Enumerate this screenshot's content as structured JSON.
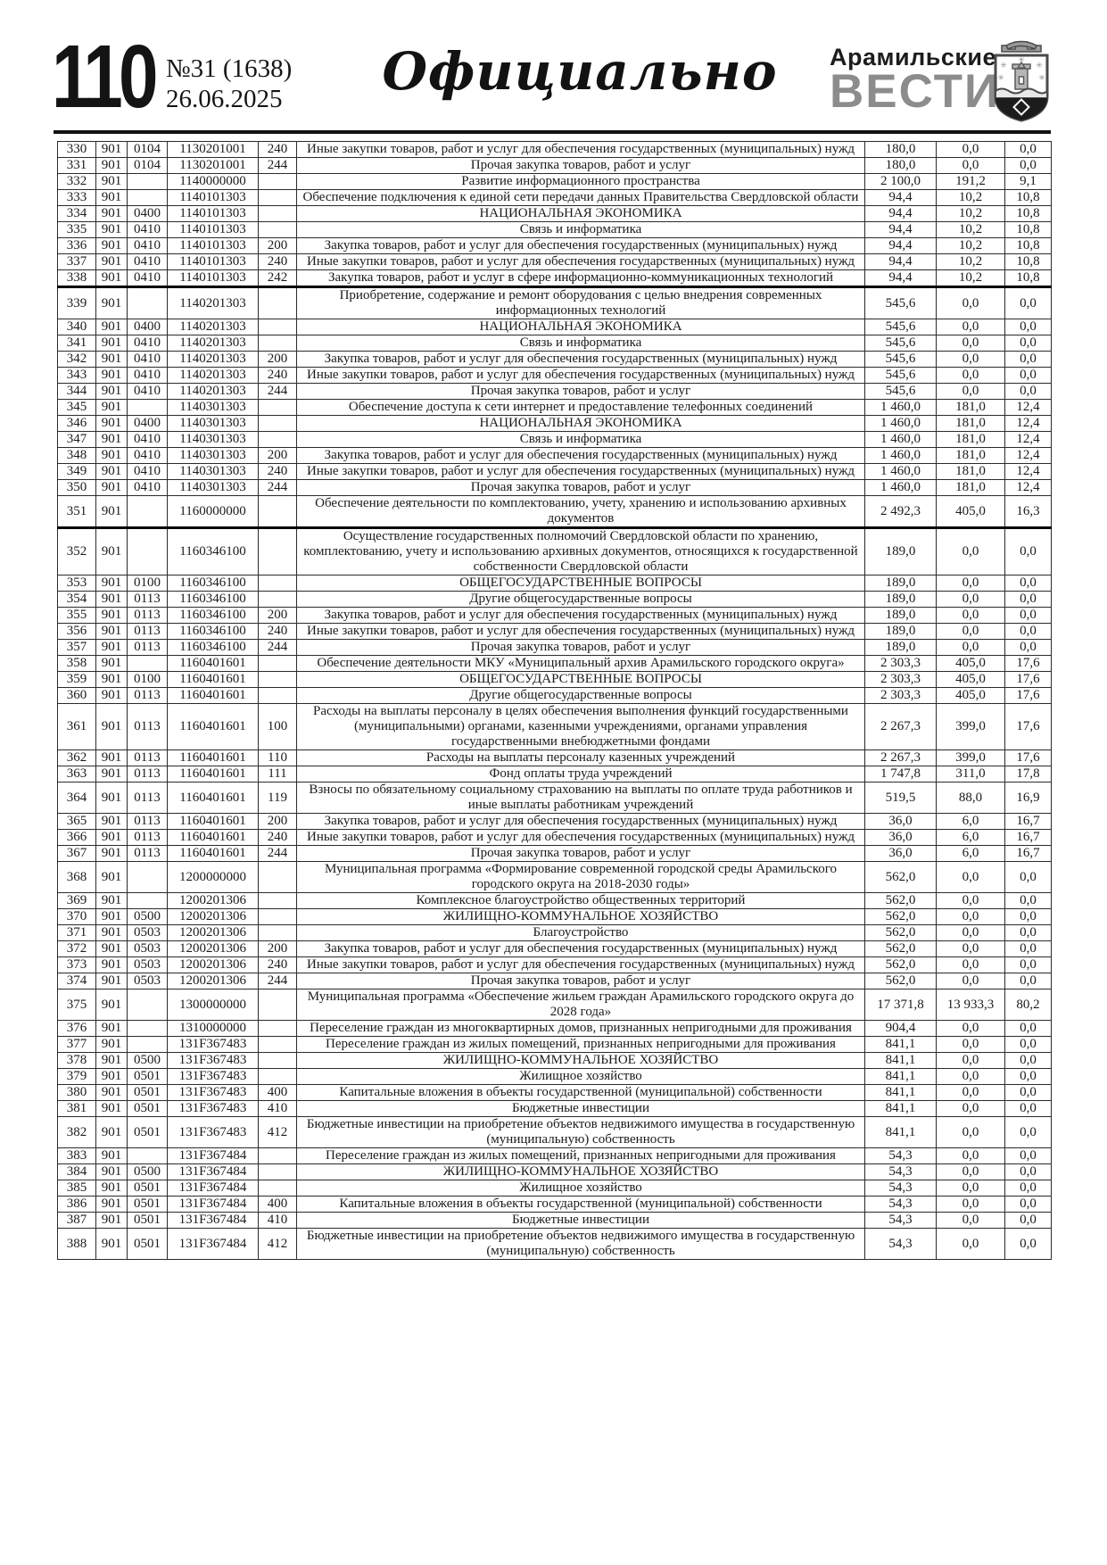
{
  "colors": {
    "masthead_gray": "#8c8c8c",
    "text": "#1b1b1b",
    "rule": "#111111"
  },
  "header": {
    "page_number": "110",
    "issue_number": "№31 (1638)",
    "issue_date": "26.06.2025",
    "section_title": "Официально",
    "masthead_line1": "Арамильские",
    "masthead_line2": "ВЕСТИ",
    "crest_icon": "aramil-coat-of-arms-icon"
  },
  "table": {
    "column_names": [
      "row-number",
      "grbs-code",
      "section-code",
      "target-article-code",
      "expense-type-code",
      "expense-name",
      "approved-amount",
      "executed-amount",
      "execution-percent"
    ],
    "thick_top_rows": [
      "339",
      "352"
    ],
    "rows": [
      [
        "330",
        "901",
        "0104",
        "1130201001",
        "240",
        "Иные закупки товаров, работ и услуг для обеспечения государственных (муниципальных) нужд",
        "180,0",
        "0,0",
        "0,0"
      ],
      [
        "331",
        "901",
        "0104",
        "1130201001",
        "244",
        "Прочая закупка товаров, работ и услуг",
        "180,0",
        "0,0",
        "0,0"
      ],
      [
        "332",
        "901",
        "",
        "1140000000",
        "",
        "Развитие информационного пространства",
        "2 100,0",
        "191,2",
        "9,1"
      ],
      [
        "333",
        "901",
        "",
        "1140101303",
        "",
        "Обеспечение подключения к единой сети передачи данных Правительства Свердловской области",
        "94,4",
        "10,2",
        "10,8"
      ],
      [
        "334",
        "901",
        "0400",
        "1140101303",
        "",
        "НАЦИОНАЛЬНАЯ ЭКОНОМИКА",
        "94,4",
        "10,2",
        "10,8"
      ],
      [
        "335",
        "901",
        "0410",
        "1140101303",
        "",
        "Связь и информатика",
        "94,4",
        "10,2",
        "10,8"
      ],
      [
        "336",
        "901",
        "0410",
        "1140101303",
        "200",
        "Закупка товаров, работ и услуг для обеспечения государственных (муниципальных) нужд",
        "94,4",
        "10,2",
        "10,8"
      ],
      [
        "337",
        "901",
        "0410",
        "1140101303",
        "240",
        "Иные закупки товаров, работ и услуг для обеспечения государственных (муниципальных) нужд",
        "94,4",
        "10,2",
        "10,8"
      ],
      [
        "338",
        "901",
        "0410",
        "1140101303",
        "242",
        "Закупка товаров, работ и услуг в сфере информационно-коммуникационных технологий",
        "94,4",
        "10,2",
        "10,8"
      ],
      [
        "339",
        "901",
        "",
        "1140201303",
        "",
        "Приобретение, содержание и ремонт оборудования с целью внедрения современных информационных технологий",
        "545,6",
        "0,0",
        "0,0"
      ],
      [
        "340",
        "901",
        "0400",
        "1140201303",
        "",
        "НАЦИОНАЛЬНАЯ ЭКОНОМИКА",
        "545,6",
        "0,0",
        "0,0"
      ],
      [
        "341",
        "901",
        "0410",
        "1140201303",
        "",
        "Связь и информатика",
        "545,6",
        "0,0",
        "0,0"
      ],
      [
        "342",
        "901",
        "0410",
        "1140201303",
        "200",
        "Закупка товаров, работ и услуг для обеспечения государственных (муниципальных) нужд",
        "545,6",
        "0,0",
        "0,0"
      ],
      [
        "343",
        "901",
        "0410",
        "1140201303",
        "240",
        "Иные закупки товаров, работ и услуг для обеспечения государственных (муниципальных) нужд",
        "545,6",
        "0,0",
        "0,0"
      ],
      [
        "344",
        "901",
        "0410",
        "1140201303",
        "244",
        "Прочая закупка товаров, работ и услуг",
        "545,6",
        "0,0",
        "0,0"
      ],
      [
        "345",
        "901",
        "",
        "1140301303",
        "",
        "Обеспечение доступа к сети интернет и предоставление телефонных соединений",
        "1 460,0",
        "181,0",
        "12,4"
      ],
      [
        "346",
        "901",
        "0400",
        "1140301303",
        "",
        "НАЦИОНАЛЬНАЯ ЭКОНОМИКА",
        "1 460,0",
        "181,0",
        "12,4"
      ],
      [
        "347",
        "901",
        "0410",
        "1140301303",
        "",
        "Связь и информатика",
        "1 460,0",
        "181,0",
        "12,4"
      ],
      [
        "348",
        "901",
        "0410",
        "1140301303",
        "200",
        "Закупка товаров, работ и услуг для обеспечения государственных (муниципальных) нужд",
        "1 460,0",
        "181,0",
        "12,4"
      ],
      [
        "349",
        "901",
        "0410",
        "1140301303",
        "240",
        "Иные закупки товаров, работ и услуг для обеспечения государственных (муниципальных) нужд",
        "1 460,0",
        "181,0",
        "12,4"
      ],
      [
        "350",
        "901",
        "0410",
        "1140301303",
        "244",
        "Прочая закупка товаров, работ и услуг",
        "1 460,0",
        "181,0",
        "12,4"
      ],
      [
        "351",
        "901",
        "",
        "1160000000",
        "",
        "Обеспечение деятельности по комплектованию, учету, хранению и использованию архивных документов",
        "2 492,3",
        "405,0",
        "16,3"
      ],
      [
        "352",
        "901",
        "",
        "1160346100",
        "",
        "Осуществление государственных полномочий Свердловской области по хранению, комплектованию, учету и использованию архивных документов, относящихся к государственной собственности Свердловской области",
        "189,0",
        "0,0",
        "0,0"
      ],
      [
        "353",
        "901",
        "0100",
        "1160346100",
        "",
        "ОБЩЕГОСУДАРСТВЕННЫЕ ВОПРОСЫ",
        "189,0",
        "0,0",
        "0,0"
      ],
      [
        "354",
        "901",
        "0113",
        "1160346100",
        "",
        "Другие общегосударственные вопросы",
        "189,0",
        "0,0",
        "0,0"
      ],
      [
        "355",
        "901",
        "0113",
        "1160346100",
        "200",
        "Закупка товаров, работ и услуг для обеспечения государственных (муниципальных) нужд",
        "189,0",
        "0,0",
        "0,0"
      ],
      [
        "356",
        "901",
        "0113",
        "1160346100",
        "240",
        "Иные закупки товаров, работ и услуг для обеспечения государственных (муниципальных) нужд",
        "189,0",
        "0,0",
        "0,0"
      ],
      [
        "357",
        "901",
        "0113",
        "1160346100",
        "244",
        "Прочая закупка товаров, работ и услуг",
        "189,0",
        "0,0",
        "0,0"
      ],
      [
        "358",
        "901",
        "",
        "1160401601",
        "",
        "Обеспечение деятельности МКУ «Муниципальный архив Арамильского городского округа»",
        "2 303,3",
        "405,0",
        "17,6"
      ],
      [
        "359",
        "901",
        "0100",
        "1160401601",
        "",
        "ОБЩЕГОСУДАРСТВЕННЫЕ ВОПРОСЫ",
        "2 303,3",
        "405,0",
        "17,6"
      ],
      [
        "360",
        "901",
        "0113",
        "1160401601",
        "",
        "Другие общегосударственные вопросы",
        "2 303,3",
        "405,0",
        "17,6"
      ],
      [
        "361",
        "901",
        "0113",
        "1160401601",
        "100",
        "Расходы на выплаты персоналу в целях обеспечения выполнения функций государственными (муниципальными) органами, казенными учреждениями, органами управления государственными внебюджетными фондами",
        "2 267,3",
        "399,0",
        "17,6"
      ],
      [
        "362",
        "901",
        "0113",
        "1160401601",
        "110",
        "Расходы на выплаты персоналу казенных учреждений",
        "2 267,3",
        "399,0",
        "17,6"
      ],
      [
        "363",
        "901",
        "0113",
        "1160401601",
        "111",
        "Фонд оплаты труда учреждений",
        "1 747,8",
        "311,0",
        "17,8"
      ],
      [
        "364",
        "901",
        "0113",
        "1160401601",
        "119",
        "Взносы по обязательному социальному страхованию на выплаты по оплате труда работников и иные выплаты работникам учреждений",
        "519,5",
        "88,0",
        "16,9"
      ],
      [
        "365",
        "901",
        "0113",
        "1160401601",
        "200",
        "Закупка товаров, работ и услуг для обеспечения государственных (муниципальных) нужд",
        "36,0",
        "6,0",
        "16,7"
      ],
      [
        "366",
        "901",
        "0113",
        "1160401601",
        "240",
        "Иные закупки товаров, работ и услуг для обеспечения государственных (муниципальных) нужд",
        "36,0",
        "6,0",
        "16,7"
      ],
      [
        "367",
        "901",
        "0113",
        "1160401601",
        "244",
        "Прочая закупка товаров, работ и услуг",
        "36,0",
        "6,0",
        "16,7"
      ],
      [
        "368",
        "901",
        "",
        "1200000000",
        "",
        "Муниципальная программа «Формирование современной городской среды Арамильского городского округа на 2018-2030 годы»",
        "562,0",
        "0,0",
        "0,0"
      ],
      [
        "369",
        "901",
        "",
        "1200201306",
        "",
        "Комплексное благоустройство общественных территорий",
        "562,0",
        "0,0",
        "0,0"
      ],
      [
        "370",
        "901",
        "0500",
        "1200201306",
        "",
        "ЖИЛИЩНО-КОММУНАЛЬНОЕ ХОЗЯЙСТВО",
        "562,0",
        "0,0",
        "0,0"
      ],
      [
        "371",
        "901",
        "0503",
        "1200201306",
        "",
        "Благоустройство",
        "562,0",
        "0,0",
        "0,0"
      ],
      [
        "372",
        "901",
        "0503",
        "1200201306",
        "200",
        "Закупка товаров, работ и услуг для обеспечения государственных (муниципальных) нужд",
        "562,0",
        "0,0",
        "0,0"
      ],
      [
        "373",
        "901",
        "0503",
        "1200201306",
        "240",
        "Иные закупки товаров, работ и услуг для обеспечения государственных (муниципальных) нужд",
        "562,0",
        "0,0",
        "0,0"
      ],
      [
        "374",
        "901",
        "0503",
        "1200201306",
        "244",
        "Прочая закупка товаров, работ и услуг",
        "562,0",
        "0,0",
        "0,0"
      ],
      [
        "375",
        "901",
        "",
        "1300000000",
        "",
        "Муниципальная программа «Обеспечение жильем граждан Арамильского городского округа до 2028 года»",
        "17 371,8",
        "13 933,3",
        "80,2"
      ],
      [
        "376",
        "901",
        "",
        "1310000000",
        "",
        "Переселение граждан из многоквартирных домов, признанных непригодными для проживания",
        "904,4",
        "0,0",
        "0,0"
      ],
      [
        "377",
        "901",
        "",
        "131F367483",
        "",
        "Переселение граждан из жилых помещений, признанных непригодными для проживания",
        "841,1",
        "0,0",
        "0,0"
      ],
      [
        "378",
        "901",
        "0500",
        "131F367483",
        "",
        "ЖИЛИЩНО-КОММУНАЛЬНОЕ ХОЗЯЙСТВО",
        "841,1",
        "0,0",
        "0,0"
      ],
      [
        "379",
        "901",
        "0501",
        "131F367483",
        "",
        "Жилищное хозяйство",
        "841,1",
        "0,0",
        "0,0"
      ],
      [
        "380",
        "901",
        "0501",
        "131F367483",
        "400",
        "Капитальные вложения в объекты государственной (муниципальной) собственности",
        "841,1",
        "0,0",
        "0,0"
      ],
      [
        "381",
        "901",
        "0501",
        "131F367483",
        "410",
        "Бюджетные инвестиции",
        "841,1",
        "0,0",
        "0,0"
      ],
      [
        "382",
        "901",
        "0501",
        "131F367483",
        "412",
        "Бюджетные инвестиции на приобретение объектов недвижимого имущества в государственную (муниципальную) собственность",
        "841,1",
        "0,0",
        "0,0"
      ],
      [
        "383",
        "901",
        "",
        "131F367484",
        "",
        "Переселение граждан из жилых помещений, признанных непригодными для проживания",
        "54,3",
        "0,0",
        "0,0"
      ],
      [
        "384",
        "901",
        "0500",
        "131F367484",
        "",
        "ЖИЛИЩНО-КОММУНАЛЬНОЕ ХОЗЯЙСТВО",
        "54,3",
        "0,0",
        "0,0"
      ],
      [
        "385",
        "901",
        "0501",
        "131F367484",
        "",
        "Жилищное хозяйство",
        "54,3",
        "0,0",
        "0,0"
      ],
      [
        "386",
        "901",
        "0501",
        "131F367484",
        "400",
        "Капитальные вложения в объекты государственной (муниципальной) собственности",
        "54,3",
        "0,0",
        "0,0"
      ],
      [
        "387",
        "901",
        "0501",
        "131F367484",
        "410",
        "Бюджетные инвестиции",
        "54,3",
        "0,0",
        "0,0"
      ],
      [
        "388",
        "901",
        "0501",
        "131F367484",
        "412",
        "Бюджетные инвестиции на приобретение объектов недвижимого имущества в государственную (муниципальную) собственность",
        "54,3",
        "0,0",
        "0,0"
      ]
    ]
  }
}
